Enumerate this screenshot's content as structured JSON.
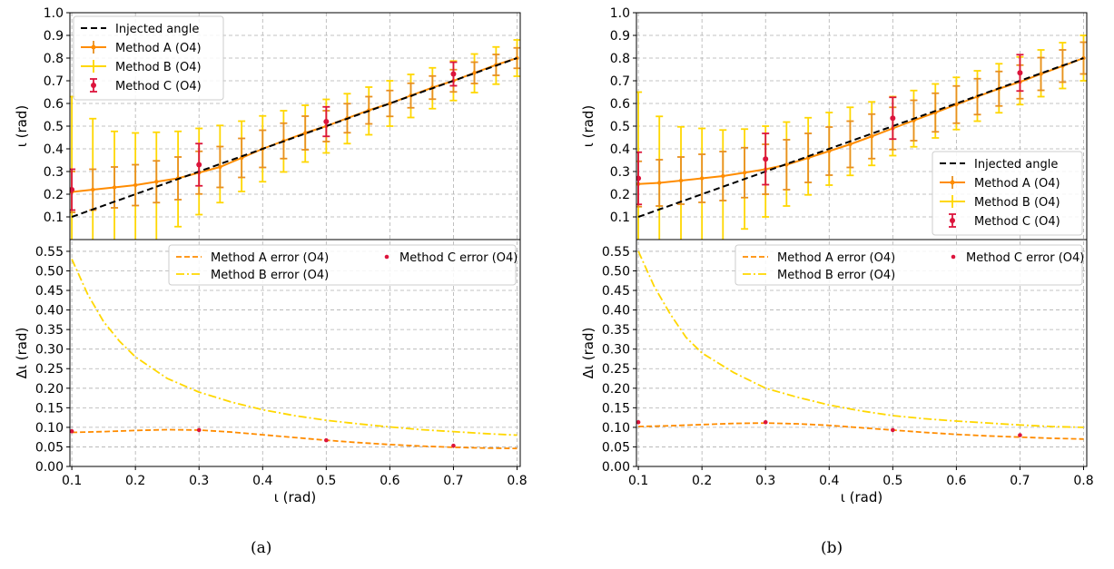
{
  "captions": [
    "(a)",
    "(b)"
  ],
  "colors": {
    "injected": "#000000",
    "method_a": "#ff8c00",
    "method_a_err": "#e89020",
    "method_b": "#ffd700",
    "method_c": "#dc143c",
    "grid": "#b0b0b0"
  },
  "chart_data": [
    {
      "panel": "a",
      "top": {
        "type": "line",
        "xlabel": "ι (rad)",
        "ylabel": "ι (rad)",
        "xlim": [
          0.097,
          0.805
        ],
        "ylim": [
          0.0,
          1.0
        ],
        "yticks": [
          "0.1",
          "0.2",
          "0.3",
          "0.4",
          "0.5",
          "0.6",
          "0.7",
          "0.8",
          "0.9",
          "1.0"
        ],
        "legend_position": "upper-left",
        "legend": [
          "Injected angle",
          "Method A (O4)",
          "Method B (O4)",
          "Method C (O4)"
        ],
        "injected": {
          "x": [
            0.1,
            0.8
          ],
          "y": [
            0.1,
            0.8
          ]
        },
        "method_a": {
          "x": [
            0.1,
            0.133,
            0.167,
            0.2,
            0.233,
            0.267,
            0.3,
            0.333,
            0.367,
            0.4,
            0.433,
            0.467,
            0.5,
            0.533,
            0.567,
            0.6,
            0.633,
            0.667,
            0.7,
            0.733,
            0.767,
            0.8
          ],
          "y": [
            0.21,
            0.22,
            0.23,
            0.24,
            0.255,
            0.27,
            0.295,
            0.32,
            0.36,
            0.4,
            0.435,
            0.47,
            0.5,
            0.535,
            0.57,
            0.6,
            0.635,
            0.67,
            0.7,
            0.735,
            0.77,
            0.8
          ],
          "err": [
            0.09,
            0.09,
            0.09,
            0.09,
            0.092,
            0.094,
            0.094,
            0.09,
            0.086,
            0.082,
            0.078,
            0.074,
            0.068,
            0.064,
            0.06,
            0.057,
            0.054,
            0.051,
            0.049,
            0.047,
            0.046,
            0.045
          ]
        },
        "method_b": {
          "x": [
            0.1,
            0.133,
            0.167,
            0.2,
            0.233,
            0.267,
            0.3,
            0.333,
            0.367,
            0.4,
            0.433,
            0.467,
            0.5,
            0.533,
            0.567,
            0.6,
            0.633,
            0.667,
            0.7,
            0.733,
            0.767,
            0.8
          ],
          "y": [
            0.1,
            0.133,
            0.167,
            0.2,
            0.233,
            0.267,
            0.3,
            0.333,
            0.367,
            0.4,
            0.433,
            0.467,
            0.5,
            0.533,
            0.567,
            0.6,
            0.633,
            0.667,
            0.7,
            0.733,
            0.767,
            0.8
          ],
          "err": [
            0.53,
            0.4,
            0.31,
            0.27,
            0.24,
            0.21,
            0.19,
            0.17,
            0.155,
            0.145,
            0.135,
            0.125,
            0.118,
            0.11,
            0.105,
            0.1,
            0.095,
            0.09,
            0.087,
            0.085,
            0.082,
            0.08
          ]
        },
        "method_c": {
          "x": [
            0.1,
            0.3,
            0.5,
            0.7
          ],
          "y": [
            0.22,
            0.33,
            0.52,
            0.73
          ],
          "err": [
            0.09,
            0.093,
            0.065,
            0.052
          ]
        }
      },
      "bottom": {
        "type": "line",
        "xlabel": "ι (rad)",
        "ylabel": "Δι (rad)",
        "xlim": [
          0.097,
          0.805
        ],
        "ylim": [
          0.0,
          0.58
        ],
        "xticks": [
          "0.1",
          "0.2",
          "0.3",
          "0.4",
          "0.5",
          "0.6",
          "0.7",
          "0.8"
        ],
        "yticks": [
          "0.00",
          "0.05",
          "0.10",
          "0.15",
          "0.20",
          "0.25",
          "0.30",
          "0.35",
          "0.40",
          "0.45",
          "0.50",
          "0.55"
        ],
        "legend_position": "upper-right",
        "legend": [
          "Method A error (O4)",
          "Method B error (O4)",
          "Method C error (O4)"
        ],
        "method_a_error": {
          "x": [
            0.1,
            0.15,
            0.2,
            0.25,
            0.3,
            0.35,
            0.4,
            0.45,
            0.5,
            0.55,
            0.6,
            0.65,
            0.7,
            0.75,
            0.8
          ],
          "y": [
            0.087,
            0.089,
            0.092,
            0.094,
            0.093,
            0.088,
            0.081,
            0.074,
            0.067,
            0.061,
            0.056,
            0.052,
            0.049,
            0.047,
            0.046
          ]
        },
        "method_b_error": {
          "x": [
            0.1,
            0.125,
            0.15,
            0.175,
            0.2,
            0.25,
            0.3,
            0.35,
            0.4,
            0.45,
            0.5,
            0.55,
            0.6,
            0.65,
            0.7,
            0.75,
            0.8
          ],
          "y": [
            0.53,
            0.44,
            0.37,
            0.32,
            0.28,
            0.225,
            0.19,
            0.165,
            0.145,
            0.13,
            0.118,
            0.109,
            0.101,
            0.094,
            0.089,
            0.084,
            0.08
          ]
        },
        "method_c_error": {
          "x": [
            0.1,
            0.3,
            0.5,
            0.7
          ],
          "y": [
            0.09,
            0.093,
            0.067,
            0.053
          ]
        }
      }
    },
    {
      "panel": "b",
      "top": {
        "type": "line",
        "xlabel": "ι (rad)",
        "ylabel": "ι (rad)",
        "xlim": [
          0.097,
          0.805
        ],
        "ylim": [
          0.0,
          1.0
        ],
        "yticks": [
          "0.1",
          "0.2",
          "0.3",
          "0.4",
          "0.5",
          "0.6",
          "0.7",
          "0.8",
          "0.9",
          "1.0"
        ],
        "legend_position": "lower-right",
        "legend": [
          "Injected angle",
          "Method A (O4)",
          "Method B (O4)",
          "Method C (O4)"
        ],
        "injected": {
          "x": [
            0.1,
            0.8
          ],
          "y": [
            0.1,
            0.8
          ]
        },
        "method_a": {
          "x": [
            0.1,
            0.133,
            0.167,
            0.2,
            0.233,
            0.267,
            0.3,
            0.333,
            0.367,
            0.4,
            0.433,
            0.467,
            0.5,
            0.533,
            0.567,
            0.6,
            0.633,
            0.667,
            0.7,
            0.733,
            0.767,
            0.8
          ],
          "y": [
            0.245,
            0.25,
            0.26,
            0.27,
            0.28,
            0.295,
            0.31,
            0.33,
            0.36,
            0.39,
            0.42,
            0.455,
            0.49,
            0.525,
            0.56,
            0.595,
            0.63,
            0.665,
            0.695,
            0.73,
            0.765,
            0.8
          ],
          "err": [
            0.1,
            0.102,
            0.104,
            0.106,
            0.108,
            0.11,
            0.11,
            0.11,
            0.108,
            0.106,
            0.102,
            0.098,
            0.093,
            0.089,
            0.085,
            0.082,
            0.079,
            0.076,
            0.074,
            0.072,
            0.071,
            0.07
          ]
        },
        "method_b": {
          "x": [
            0.1,
            0.133,
            0.167,
            0.2,
            0.233,
            0.267,
            0.3,
            0.333,
            0.367,
            0.4,
            0.433,
            0.467,
            0.5,
            0.533,
            0.567,
            0.6,
            0.633,
            0.667,
            0.7,
            0.733,
            0.767,
            0.8
          ],
          "y": [
            0.1,
            0.133,
            0.167,
            0.2,
            0.233,
            0.267,
            0.3,
            0.333,
            0.367,
            0.4,
            0.433,
            0.467,
            0.5,
            0.533,
            0.567,
            0.6,
            0.633,
            0.667,
            0.7,
            0.733,
            0.767,
            0.8
          ],
          "err": [
            0.55,
            0.41,
            0.33,
            0.29,
            0.25,
            0.22,
            0.2,
            0.185,
            0.17,
            0.16,
            0.15,
            0.14,
            0.13,
            0.124,
            0.119,
            0.115,
            0.111,
            0.108,
            0.105,
            0.103,
            0.101,
            0.1
          ]
        },
        "method_c": {
          "x": [
            0.1,
            0.3,
            0.5,
            0.7
          ],
          "y": [
            0.27,
            0.355,
            0.535,
            0.735
          ],
          "err": [
            0.115,
            0.113,
            0.092,
            0.08
          ]
        }
      },
      "bottom": {
        "type": "line",
        "xlabel": "ι (rad)",
        "ylabel": "Δι (rad)",
        "xlim": [
          0.097,
          0.805
        ],
        "ylim": [
          0.0,
          0.58
        ],
        "xticks": [
          "0.1",
          "0.2",
          "0.3",
          "0.4",
          "0.5",
          "0.6",
          "0.7",
          "0.8"
        ],
        "yticks": [
          "0.00",
          "0.05",
          "0.10",
          "0.15",
          "0.20",
          "0.25",
          "0.30",
          "0.35",
          "0.40",
          "0.45",
          "0.50",
          "0.55"
        ],
        "legend_position": "upper-right",
        "legend": [
          "Method A error (O4)",
          "Method B error (O4)",
          "Method C error (O4)"
        ],
        "method_a_error": {
          "x": [
            0.1,
            0.15,
            0.2,
            0.25,
            0.3,
            0.35,
            0.4,
            0.45,
            0.5,
            0.55,
            0.6,
            0.65,
            0.7,
            0.75,
            0.8
          ],
          "y": [
            0.102,
            0.104,
            0.107,
            0.11,
            0.111,
            0.109,
            0.105,
            0.099,
            0.093,
            0.087,
            0.082,
            0.078,
            0.075,
            0.072,
            0.07
          ]
        },
        "method_b_error": {
          "x": [
            0.1,
            0.125,
            0.15,
            0.175,
            0.2,
            0.25,
            0.3,
            0.35,
            0.4,
            0.45,
            0.5,
            0.55,
            0.6,
            0.65,
            0.7,
            0.75,
            0.8
          ],
          "y": [
            0.55,
            0.46,
            0.39,
            0.33,
            0.29,
            0.24,
            0.2,
            0.177,
            0.157,
            0.142,
            0.13,
            0.122,
            0.116,
            0.111,
            0.106,
            0.102,
            0.1
          ]
        },
        "method_c_error": {
          "x": [
            0.1,
            0.3,
            0.5,
            0.7
          ],
          "y": [
            0.113,
            0.113,
            0.093,
            0.08
          ]
        }
      }
    }
  ]
}
